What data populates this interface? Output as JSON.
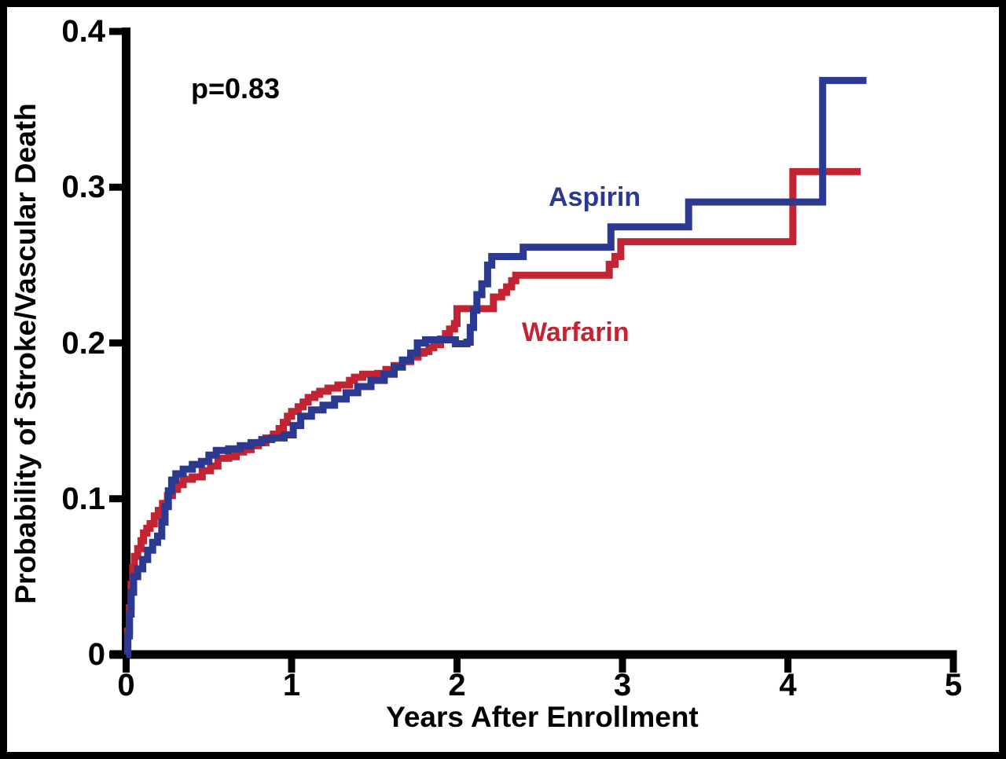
{
  "chart_data": {
    "type": "line",
    "subtype": "kaplan-meier-step",
    "title": "",
    "xlabel": "Years After Enrollment",
    "ylabel": "Probability of Stroke/Vascular Death",
    "annotation": "p=0.83",
    "xlim": [
      0,
      5.05
    ],
    "ylim": [
      0,
      0.4
    ],
    "xticks": [
      0,
      1,
      2,
      3,
      4,
      5
    ],
    "xtick_labels": [
      "0",
      "1",
      "2",
      "3",
      "4",
      "5"
    ],
    "yticks": [
      0,
      0.1,
      0.2,
      0.3,
      0.4
    ],
    "ytick_labels": [
      "0",
      "0.1",
      "0.2",
      "0.3",
      "0.4"
    ],
    "grid": false,
    "legend_position": "inline-labels",
    "axis_color": "#000000",
    "series": [
      {
        "name": "Warfarin",
        "color": "#C32433",
        "points": [
          [
            0,
            0
          ],
          [
            0.01,
            0.015
          ],
          [
            0.02,
            0.03
          ],
          [
            0.03,
            0.045
          ],
          [
            0.04,
            0.056
          ],
          [
            0.05,
            0.063
          ],
          [
            0.07,
            0.068
          ],
          [
            0.09,
            0.073
          ],
          [
            0.105,
            0.078
          ],
          [
            0.125,
            0.081
          ],
          [
            0.145,
            0.084
          ],
          [
            0.17,
            0.089
          ],
          [
            0.195,
            0.0925
          ],
          [
            0.22,
            0.097
          ],
          [
            0.25,
            0.102
          ],
          [
            0.28,
            0.106
          ],
          [
            0.31,
            0.109
          ],
          [
            0.345,
            0.1125
          ],
          [
            0.4,
            0.114
          ],
          [
            0.46,
            0.118
          ],
          [
            0.51,
            0.121
          ],
          [
            0.555,
            0.126
          ],
          [
            0.62,
            0.127
          ],
          [
            0.665,
            0.13
          ],
          [
            0.71,
            0.1315
          ],
          [
            0.755,
            0.134
          ],
          [
            0.8,
            0.136
          ],
          [
            0.845,
            0.139
          ],
          [
            0.89,
            0.1415
          ],
          [
            0.925,
            0.145
          ],
          [
            0.95,
            0.149
          ],
          [
            0.975,
            0.153
          ],
          [
            1.0,
            0.156
          ],
          [
            1.04,
            0.159
          ],
          [
            1.07,
            0.162
          ],
          [
            1.1,
            0.165
          ],
          [
            1.14,
            0.167
          ],
          [
            1.17,
            0.169
          ],
          [
            1.22,
            0.171
          ],
          [
            1.28,
            0.173
          ],
          [
            1.35,
            0.176
          ],
          [
            1.38,
            0.178
          ],
          [
            1.43,
            0.18
          ],
          [
            1.52,
            0.1805
          ],
          [
            1.57,
            0.183
          ],
          [
            1.62,
            0.1855
          ],
          [
            1.67,
            0.188
          ],
          [
            1.72,
            0.191
          ],
          [
            1.765,
            0.1935
          ],
          [
            1.8,
            0.1945
          ],
          [
            1.83,
            0.197
          ],
          [
            1.86,
            0.199
          ],
          [
            1.9,
            0.2025
          ],
          [
            1.93,
            0.206
          ],
          [
            1.955,
            0.209
          ],
          [
            1.985,
            0.2125
          ],
          [
            2.0,
            0.222
          ],
          [
            2.21,
            0.222
          ],
          [
            2.22,
            0.2295
          ],
          [
            2.27,
            0.2325
          ],
          [
            2.3,
            0.236
          ],
          [
            2.33,
            0.24
          ],
          [
            2.355,
            0.2435
          ],
          [
            2.895,
            0.2435
          ],
          [
            2.92,
            0.2505
          ],
          [
            2.955,
            0.2555
          ],
          [
            2.99,
            0.265
          ],
          [
            4.015,
            0.265
          ],
          [
            4.03,
            0.31
          ],
          [
            4.44,
            0.31
          ]
        ]
      },
      {
        "name": "Aspirin",
        "color": "#2B3990",
        "points": [
          [
            0,
            0
          ],
          [
            0.01,
            0.012
          ],
          [
            0.02,
            0.026
          ],
          [
            0.03,
            0.04
          ],
          [
            0.045,
            0.05
          ],
          [
            0.07,
            0.055
          ],
          [
            0.1,
            0.061
          ],
          [
            0.13,
            0.067
          ],
          [
            0.16,
            0.072
          ],
          [
            0.19,
            0.076
          ],
          [
            0.215,
            0.085
          ],
          [
            0.235,
            0.095
          ],
          [
            0.255,
            0.105
          ],
          [
            0.275,
            0.112
          ],
          [
            0.3,
            0.116
          ],
          [
            0.345,
            0.119
          ],
          [
            0.4,
            0.122
          ],
          [
            0.455,
            0.124
          ],
          [
            0.5,
            0.128
          ],
          [
            0.545,
            0.131
          ],
          [
            0.62,
            0.132
          ],
          [
            0.69,
            0.134
          ],
          [
            0.755,
            0.136
          ],
          [
            0.82,
            0.138
          ],
          [
            0.88,
            0.139
          ],
          [
            0.955,
            0.141
          ],
          [
            1.01,
            0.147
          ],
          [
            1.055,
            0.153
          ],
          [
            1.12,
            0.157
          ],
          [
            1.19,
            0.16
          ],
          [
            1.26,
            0.164
          ],
          [
            1.33,
            0.168
          ],
          [
            1.4,
            0.172
          ],
          [
            1.48,
            0.176
          ],
          [
            1.56,
            0.18
          ],
          [
            1.62,
            0.1845
          ],
          [
            1.67,
            0.189
          ],
          [
            1.72,
            0.1935
          ],
          [
            1.76,
            0.2
          ],
          [
            1.81,
            0.202
          ],
          [
            1.93,
            0.202
          ],
          [
            1.99,
            0.1995
          ],
          [
            2.06,
            0.2005
          ],
          [
            2.08,
            0.21
          ],
          [
            2.1,
            0.221
          ],
          [
            2.12,
            0.231
          ],
          [
            2.15,
            0.238
          ],
          [
            2.185,
            0.25
          ],
          [
            2.21,
            0.2555
          ],
          [
            2.39,
            0.2555
          ],
          [
            2.4,
            0.2615
          ],
          [
            2.91,
            0.2615
          ],
          [
            2.93,
            0.2745
          ],
          [
            3.39,
            0.2745
          ],
          [
            3.4,
            0.2905
          ],
          [
            4.195,
            0.2905
          ],
          [
            4.21,
            0.3685
          ],
          [
            4.475,
            0.3685
          ]
        ]
      }
    ]
  }
}
